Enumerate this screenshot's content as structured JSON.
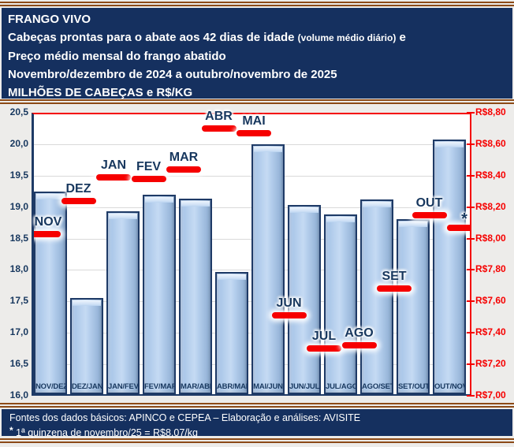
{
  "header": {
    "title": "FRANGO VIVO",
    "line2_main": "Cabeças prontas para o abate aos 42 dias de idade ",
    "line2_small": "(volume médio diário)",
    "line2_tail": " e",
    "line3": "Preço médio mensal do frango abatido",
    "line4": "Novembro/dezembro de 2024 a outubro/novembro de 2025",
    "line5": "MILHÕES DE CABEÇAS e R$/KG"
  },
  "footer": {
    "line1": "Fontes dos dados básicos: APINCO e CEPEA – Elaboração e análises: AVISITE",
    "note_star": "*",
    "note_text": " 1ª quinzena de novembro/25 = R$8,07/kg"
  },
  "chart_data": {
    "type": "bar",
    "title": "Cabeças prontas para o abate aos 42 dias de idade (volume médio diário) e Preço médio mensal do frango abatido",
    "subtitle": "Novembro/dezembro de 2024 a outubro/novembro de 2025",
    "units": "MILHÕES DE CABEÇAS e R$/KG",
    "categories": [
      "NOV/DEZ",
      "DEZ/JAN",
      "JAN/FEV",
      "FEV/MAR",
      "MAR/ABR",
      "ABR/MAI",
      "MAI/JUN",
      "JUN/JUL",
      "JUL/AGO",
      "AGO/SET",
      "SET/OUT",
      "OUT/NOV"
    ],
    "series": [
      {
        "name": "Cabeças prontas para o abate (milhões, volume médio diário)",
        "type": "bar",
        "values": [
          19.25,
          17.55,
          18.93,
          19.2,
          19.13,
          17.97,
          20.0,
          19.03,
          18.88,
          19.12,
          18.81,
          20.07
        ]
      },
      {
        "name": "Preço médio mensal do frango abatido (R$/kg)",
        "type": "price-dash",
        "points": [
          {
            "label": "NOV",
            "value": 8.03
          },
          {
            "label": "DEZ",
            "value": 8.24
          },
          {
            "label": "JAN",
            "value": 8.39
          },
          {
            "label": "FEV",
            "value": 8.38
          },
          {
            "label": "MAR",
            "value": 8.44
          },
          {
            "label": "ABR",
            "value": 8.7
          },
          {
            "label": "MAI",
            "value": 8.67
          },
          {
            "label": "JUN",
            "value": 7.51
          },
          {
            "label": "JUL",
            "value": 7.3
          },
          {
            "label": "AGO",
            "value": 7.32
          },
          {
            "label": "SET",
            "value": 7.68
          },
          {
            "label": "OUT",
            "value": 8.15
          },
          {
            "label": "*",
            "value": 8.07
          }
        ]
      }
    ],
    "left_axis": {
      "min": 16.0,
      "max": 20.5,
      "step": 0.5,
      "labels": [
        "20,5",
        "20,0",
        "19,5",
        "19,0",
        "18,5",
        "18,0",
        "17,5",
        "17,0",
        "16,5",
        "16,0"
      ]
    },
    "right_axis": {
      "min": 7.0,
      "max": 8.8,
      "step": 0.2,
      "labels": [
        "R$8,80",
        "R$8,60",
        "R$8,40",
        "R$8,20",
        "R$8,00",
        "R$7,80",
        "R$7,60",
        "R$7,40",
        "R$7,20",
        "R$7,00"
      ]
    },
    "grid": true,
    "legend": false,
    "footnote": "* 1ª quinzena de novembro/25 = R$8,07/kg"
  },
  "colors": {
    "panel_navy": "#15305F",
    "rule_brown": "#8C4A17",
    "accent_red": "#F60000",
    "bar_fill": "#AFCBEA",
    "bar_border": "#1E3A66",
    "axis_left_text": "#17375E",
    "axis_right_text": "#F60000",
    "plot_bg": "#FFFFFF",
    "page_bg": "#EDECEA"
  }
}
